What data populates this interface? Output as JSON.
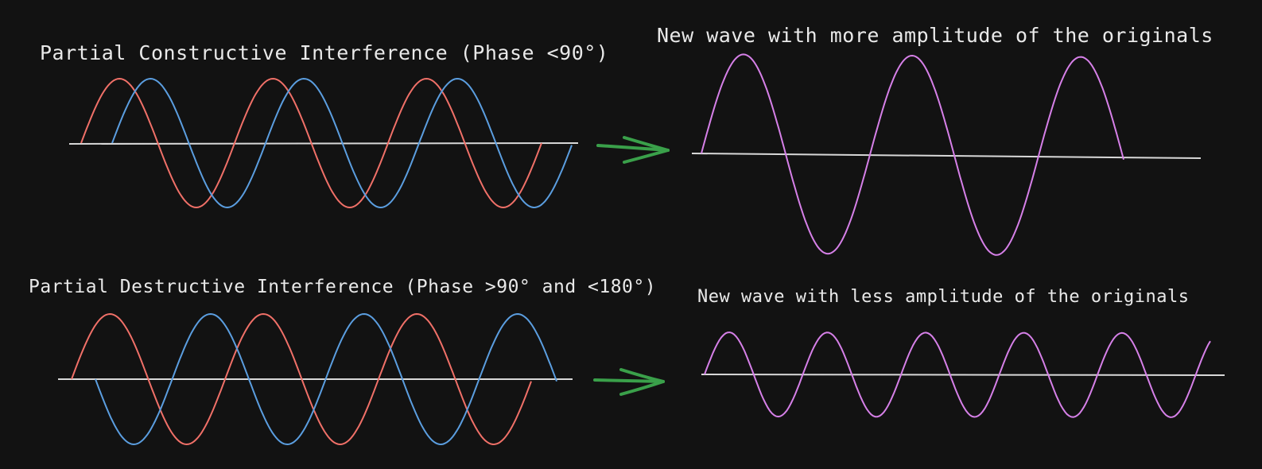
{
  "colors": {
    "background": "#121212",
    "text": "#e9e9e9",
    "axis": "#d8d8d8",
    "wave_a": "#f07068",
    "wave_b": "#5b9ee0",
    "wave_result": "#d680e8",
    "arrow": "#3aa04a"
  },
  "captions": {
    "partial_constructive": "Partial Constructive Interference (Phase <90°)",
    "new_more": "New wave with more amplitude of the originals",
    "partial_destructive": "Partial Destructive Interference (Phase >90° and <180°)",
    "new_less": "New wave with less amplitude of the originals"
  },
  "icons": {
    "arrow_top": "right-arrow-icon",
    "arrow_bottom": "right-arrow-icon"
  }
}
